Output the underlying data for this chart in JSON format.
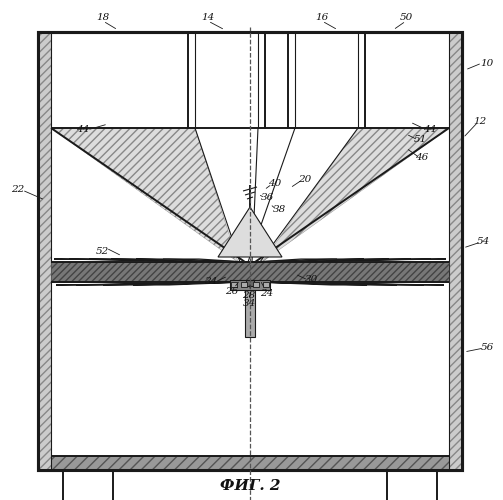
{
  "title": "ФИГ. 2",
  "title_fontsize": 11,
  "bg_color": "#ffffff",
  "line_color": "#1a1a1a",
  "gray_fill": "#b0b0b0",
  "dark_fill": "#6a6a6a",
  "light_fill": "#e8e8e8",
  "hatch_fill": "#888888"
}
